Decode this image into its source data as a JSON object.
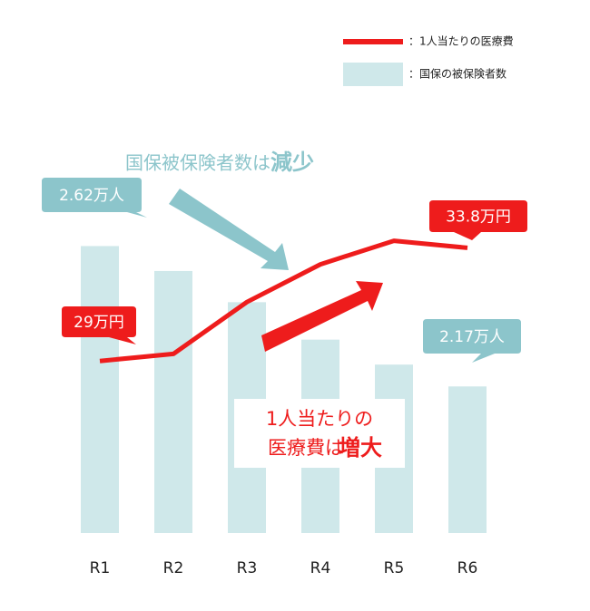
{
  "chart_data": {
    "type": "bar",
    "categories": [
      "R1",
      "R2",
      "R3",
      "R4",
      "R5",
      "R6"
    ],
    "ylim": [
      1.7,
      3.06
    ],
    "y2lim": [
      21.7,
      39.7
    ],
    "series": [
      {
        "name": "：国保の被保険者数",
        "type": "bar",
        "color": "#cfe8ea",
        "values": [
          2.62,
          2.54,
          2.44,
          2.32,
          2.24,
          2.17
        ],
        "value_labels": [
          "2.62万人",
          null,
          null,
          null,
          null,
          "2.17万人"
        ]
      },
      {
        "name": "：1人当たりの医療費",
        "type": "line",
        "axis": "y2",
        "color": "#ee1c1c",
        "values": [
          29,
          29.3,
          31.5,
          33.1,
          34.1,
          33.8
        ],
        "value_labels": [
          "29万円",
          null,
          null,
          null,
          null,
          "33.8万円"
        ]
      }
    ],
    "annotations": {
      "insured": [
        "国保被保険者数は",
        "減少"
      ],
      "cost": [
        "1人当たりの",
        "医療費は",
        "増大"
      ]
    }
  }
}
